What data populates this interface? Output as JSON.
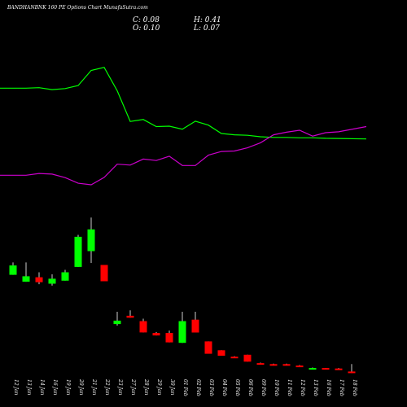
{
  "header": {
    "title": "BANDHANBNK 160  PE Options  Chart MunafaSutra.com",
    "close": "C: 0.08",
    "open": "O: 0.10",
    "high": "H: 0.41",
    "low": "L: 0.07"
  },
  "colors": {
    "background": "#000000",
    "up": "#00ff00",
    "down": "#ff0000",
    "line_green": "#00ff00",
    "line_magenta": "#cc00cc",
    "text": "#ffffff"
  },
  "chart_data": {
    "type": "candlestick",
    "categories": [
      "12 Jan",
      "13 Jan",
      "14 Jan",
      "16 Jan",
      "19 Jan",
      "20 Jan",
      "21 Jan",
      "22 Jan",
      "23 Jan",
      "27 Jan",
      "28 Jan",
      "29 Jan",
      "30 Jan",
      "01 Feb",
      "02 Feb",
      "03 Feb",
      "04 Feb",
      "05 Feb",
      "06 Feb",
      "09 Feb",
      "10 Feb",
      "11 Feb",
      "12 Feb",
      "13 Feb",
      "16 Feb",
      "17 Feb",
      "18 Feb"
    ],
    "candles": [
      {
        "open": 3.6,
        "close": 4.55,
        "high": 4.85,
        "low": 3.6
      },
      {
        "open": 2.9,
        "close": 3.45,
        "high": 4.85,
        "low": 2.9
      },
      {
        "open": 3.35,
        "close": 2.85,
        "high": 3.85,
        "low": 2.65
      },
      {
        "open": 2.7,
        "close": 3.2,
        "high": 3.65,
        "low": 2.5
      },
      {
        "open": 3.0,
        "close": 3.85,
        "high": 4.1,
        "low": 3.0
      },
      {
        "open": 4.4,
        "close": 7.45,
        "high": 7.65,
        "low": 4.4
      },
      {
        "open": 6.0,
        "close": 8.2,
        "high": 9.4,
        "low": 4.8
      },
      {
        "open": 4.6,
        "close": 2.95,
        "high": 4.6,
        "low": 2.95
      },
      {
        "open": -1.4,
        "close": -1.05,
        "high": -0.15,
        "low": -1.55
      },
      {
        "open": -0.55,
        "close": -0.75,
        "high": 0.0,
        "low": -0.75
      },
      {
        "open": -1.1,
        "close": -2.25,
        "high": -0.85,
        "low": -2.25
      },
      {
        "open": -2.3,
        "close": -2.55,
        "high": -2.2,
        "low": -2.55
      },
      {
        "open": -2.3,
        "close": -3.25,
        "high": -2.05,
        "low": -3.25
      },
      {
        "open": -3.3,
        "close": -1.1,
        "high": -0.15,
        "low": -3.3
      },
      {
        "open": -0.95,
        "close": -2.25,
        "high": -0.15,
        "low": -2.25
      },
      {
        "open": -3.15,
        "close": -4.4,
        "high": -3.15,
        "low": -4.4
      },
      {
        "open": -4.05,
        "close": -4.6,
        "high": -4.05,
        "low": -4.6
      },
      {
        "open": -4.7,
        "close": -4.85,
        "high": -4.65,
        "low": -4.85
      },
      {
        "open": -4.5,
        "close": -5.2,
        "high": -4.5,
        "low": -5.2
      },
      {
        "open": -5.35,
        "close": -5.45,
        "high": -5.3,
        "low": -5.5
      },
      {
        "open": -5.45,
        "close": -5.55,
        "high": -5.4,
        "low": -5.6
      },
      {
        "open": -5.45,
        "close": -5.6,
        "high": -5.4,
        "low": -5.6
      },
      {
        "open": -5.6,
        "close": -5.75,
        "high": -5.55,
        "low": -5.75
      },
      {
        "open": -5.9,
        "close": -5.85,
        "high": -5.8,
        "low": -5.95
      },
      {
        "open": -5.85,
        "close": -6.0,
        "high": -5.85,
        "low": -6.0
      },
      {
        "open": -5.9,
        "close": -6.05,
        "high": -5.85,
        "low": -6.05
      },
      {
        "open": -6.2,
        "close": -6.35,
        "high": -5.45,
        "low": -6.35
      }
    ],
    "line_series": [
      {
        "color": "#00ff00",
        "values": [
          40.6,
          40.6,
          40.8,
          39.9,
          40.4,
          41.8,
          48.8,
          50.2,
          39.4,
          25.2,
          26.1,
          22.8,
          23.0,
          21.6,
          25.3,
          23.5,
          19.6,
          19.0,
          18.8,
          18.1,
          17.8,
          17.8,
          17.6,
          17.6,
          17.4,
          17.3,
          17.1
        ]
      },
      {
        "color": "#cc00cc",
        "values": [
          0.3,
          0.3,
          1.1,
          0.8,
          -0.8,
          -3.4,
          -4.1,
          -0.7,
          5.4,
          5.0,
          7.8,
          7.1,
          9.1,
          4.8,
          4.8,
          9.6,
          11.3,
          11.5,
          13.0,
          15.3,
          19.0,
          20.2,
          21.1,
          18.4,
          20.0,
          20.4,
          22.8
        ]
      }
    ],
    "title": "BANDHANBNK 160  PE Options  Chart MunafaSutra.com",
    "xlabel": "",
    "ylabel": "",
    "grid": false,
    "legend": "none"
  }
}
